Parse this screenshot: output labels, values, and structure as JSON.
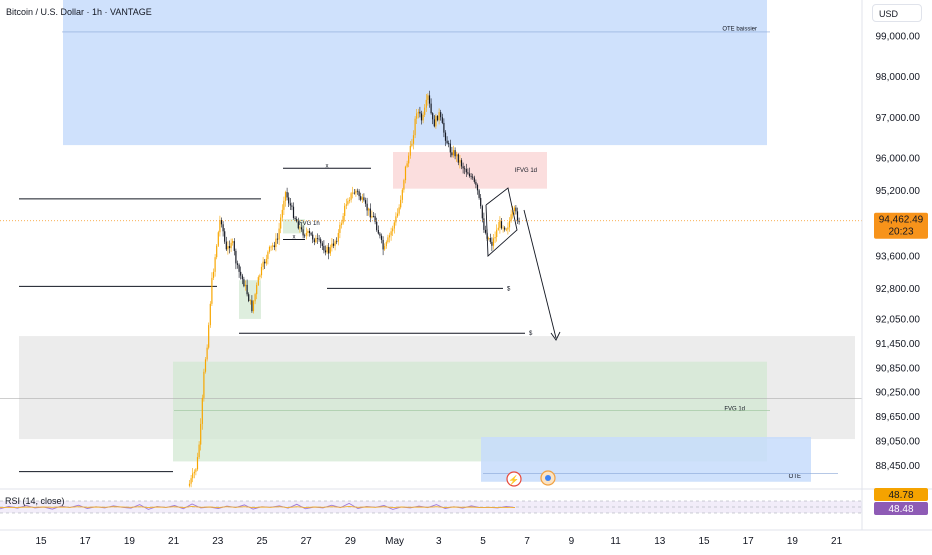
{
  "header": {
    "title": "Bitcoin / U.S. Dollar · 1h · VANTAGE",
    "currency": "USD"
  },
  "colors": {
    "up": "#f7a600",
    "down": "#131722",
    "price_line": "#f7931a",
    "ote_zone": "#c7dcfb",
    "ifvg_zone": "#fbdada",
    "fvg_zone": "#d3e8d3",
    "grey_zone": "#e6e6e6",
    "rsi_line": "#a07ad6",
    "rsi_band": "#ede6f7"
  },
  "chart_data": {
    "type": "candlestick",
    "symbol": "Bitcoin / U.S. Dollar",
    "timeframe": "1h",
    "broker": "VANTAGE",
    "y_ticks": [
      "99,000.00",
      "98,000.00",
      "97,000.00",
      "96,000.00",
      "95,200.00",
      "93,600.00",
      "92,800.00",
      "92,050.00",
      "91,450.00",
      "90,850.00",
      "90,250.00",
      "89,650.00",
      "89,050.00",
      "88,450.00"
    ],
    "x_ticks": [
      "15",
      "17",
      "19",
      "21",
      "23",
      "25",
      "27",
      "29",
      "May",
      "3",
      "5",
      "7",
      "9",
      "11",
      "13",
      "15",
      "17",
      "19",
      "21"
    ],
    "last_price": {
      "value": "94,462.49",
      "countdown": "20:23",
      "price": 94462.49
    },
    "price_path": [
      [
        "Apr 21 18:00",
        88000
      ],
      [
        "Apr 21 22:00",
        88200
      ],
      [
        "Apr 22 02:00",
        88450
      ],
      [
        "Apr 22 06:00",
        89300
      ],
      [
        "Apr 22 10:00",
        90800
      ],
      [
        "Apr 22 14:00",
        91600
      ],
      [
        "Apr 22 18:00",
        92900
      ],
      [
        "Apr 22 22:00",
        93600
      ],
      [
        "Apr 23 04:00",
        94600
      ],
      [
        "Apr 23 10:00",
        93700
      ],
      [
        "Apr 23 16:00",
        94000
      ],
      [
        "Apr 23 22:00",
        93300
      ],
      [
        "Apr 24 06:00",
        92900
      ],
      [
        "Apr 24 14:00",
        92300
      ],
      [
        "Apr 24 22:00",
        93100
      ],
      [
        "Apr 25 08:00",
        93700
      ],
      [
        "Apr 25 18:00",
        94000
      ],
      [
        "Apr 26 02:00",
        95200
      ],
      [
        "Apr 26 10:00",
        94700
      ],
      [
        "Apr 26 20:00",
        94200
      ],
      [
        "Apr 27 06:00",
        94100
      ],
      [
        "Apr 27 16:00",
        93900
      ],
      [
        "Apr 28 02:00",
        93700
      ],
      [
        "Apr 28 12:00",
        94100
      ],
      [
        "Apr 28 22:00",
        95000
      ],
      [
        "Apr 29 08:00",
        95200
      ],
      [
        "Apr 29 18:00",
        94800
      ],
      [
        "Apr 30 04:00",
        94500
      ],
      [
        "Apr 30 14:00",
        93700
      ],
      [
        "Apr 30 22:00",
        94200
      ],
      [
        "May 1 06:00",
        94700
      ],
      [
        "May 1 14:00",
        95800
      ],
      [
        "May 1 20:00",
        96300
      ],
      [
        "May 2 02:00",
        97200
      ],
      [
        "May 2 08:00",
        96900
      ],
      [
        "May 2 14:00",
        97500
      ],
      [
        "May 2 20:00",
        96800
      ],
      [
        "May 3 02:00",
        97100
      ],
      [
        "May 3 08:00",
        96600
      ],
      [
        "May 3 14:00",
        96200
      ],
      [
        "May 3 20:00",
        96100
      ],
      [
        "May 4 04:00",
        95800
      ],
      [
        "May 4 12:00",
        95600
      ],
      [
        "May 4 20:00",
        95200
      ],
      [
        "May 5 04:00",
        94200
      ],
      [
        "May 5 12:00",
        93900
      ],
      [
        "May 5 20:00",
        94400
      ],
      [
        "May 6 04:00",
        94300
      ],
      [
        "May 6 12:00",
        94700
      ],
      [
        "May 6 18:00",
        94462
      ]
    ],
    "zones": [
      {
        "label": "OTE baissier",
        "from": "Apr 16",
        "to": "May 18",
        "top": 99950,
        "bottom": 96320,
        "kind": "ote"
      },
      {
        "label": "IFVG 1d",
        "from": "May 1",
        "to": "May 8",
        "top": 96150,
        "bottom": 95250,
        "kind": "ifvg"
      },
      {
        "label": "FVG 1h",
        "from": "Apr 26",
        "to": "Apr 27",
        "top": 94500,
        "bottom": 94150,
        "kind": "fvg"
      },
      {
        "label": "",
        "from": "Apr 24",
        "to": "Apr 25",
        "top": 93000,
        "bottom": 92050,
        "kind": "fvg"
      },
      {
        "label": "",
        "from": "Apr 14",
        "to": "May 22",
        "top": 91630,
        "bottom": 89100,
        "kind": "grey"
      },
      {
        "label": "FVG 1d",
        "from": "Apr 21",
        "to": "May 18",
        "top": 91000,
        "bottom": 88550,
        "kind": "fvg"
      },
      {
        "label": "OTE",
        "from": "May 5",
        "to": "May 20",
        "top": 89150,
        "bottom": 88050,
        "kind": "ote"
      }
    ],
    "levels": [
      {
        "label": "",
        "price": 95000,
        "from": "Apr 14",
        "to": "Apr 25"
      },
      {
        "label": "",
        "price": 92850,
        "from": "Apr 14",
        "to": "Apr 23"
      },
      {
        "label": "",
        "price": 88300,
        "from": "Apr 14",
        "to": "Apr 21"
      },
      {
        "label": "x",
        "price": 95750,
        "from": "Apr 26",
        "to": "Apr 30"
      },
      {
        "label": "x",
        "price": 94000,
        "from": "Apr 26",
        "to": "Apr 27"
      },
      {
        "label": "$",
        "price": 92800,
        "from": "Apr 28",
        "to": "May 6"
      },
      {
        "label": "$",
        "price": 91700,
        "from": "Apr 24",
        "to": "May 7"
      }
    ],
    "rsi": {
      "title": "RSI (14, close)",
      "value": "48.78",
      "ma_value": "48.48",
      "levels": {
        "upper": 70,
        "middle": 50,
        "lower": 30
      },
      "values": [
        44,
        52,
        46,
        55,
        47,
        50,
        43,
        53,
        48,
        56,
        45,
        51,
        47,
        54,
        49,
        46,
        58,
        42,
        52,
        48,
        55,
        44,
        60,
        47,
        50,
        45,
        53,
        48,
        57,
        43,
        51,
        49,
        54,
        46,
        59,
        44,
        50,
        47,
        56,
        48,
        62,
        45,
        52,
        49,
        55,
        42,
        50,
        47,
        53,
        48,
        58,
        45,
        51,
        46,
        54,
        48,
        49,
        47,
        52,
        48
      ],
      "ma": [
        48,
        49,
        48,
        50,
        49,
        50,
        49,
        50,
        49,
        51,
        49,
        50,
        49,
        51,
        50,
        49,
        51,
        48,
        50,
        49,
        51,
        48,
        52,
        49,
        50,
        48,
        51,
        49,
        51,
        48,
        50,
        49,
        51,
        48,
        51,
        48,
        50,
        49,
        51,
        49,
        52,
        49,
        50,
        49,
        51,
        48,
        50,
        49,
        50,
        49,
        51,
        48,
        50,
        49,
        50,
        48,
        49,
        48,
        49,
        48
      ]
    }
  }
}
